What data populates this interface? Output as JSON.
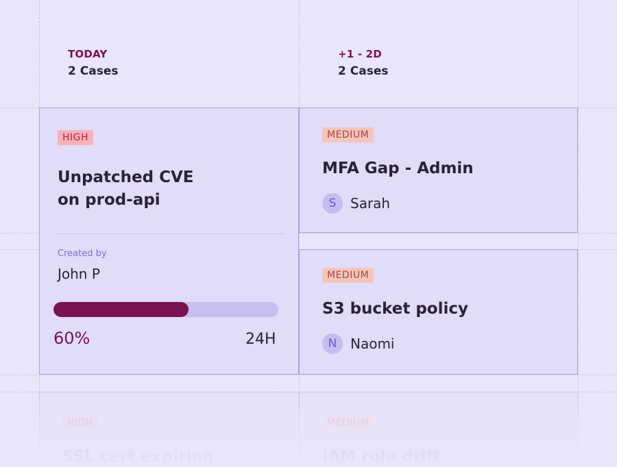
{
  "columns": [
    {
      "tag": "TODAY",
      "count": "2 Cases"
    },
    {
      "tag": "+1 - 2D",
      "count": "2 Cases"
    }
  ],
  "cards": {
    "cve": {
      "priority": "HIGH",
      "title_line1": "Unpatched CVE",
      "title_line2": "on prod-api",
      "created_label": "Created by",
      "created_by": "John P",
      "progress": 0.6,
      "progress_text": "60%",
      "sla": "24H"
    },
    "mfa": {
      "priority": "MEDIUM",
      "title": "MFA Gap - Admin",
      "assignee_initial": "S",
      "assignee": "Sarah"
    },
    "s3": {
      "priority": "MEDIUM",
      "title": "S3 bucket policy",
      "assignee_initial": "N",
      "assignee": "Naomi"
    },
    "ssl": {
      "priority": "HIGH",
      "title": "SSL cert expiring"
    },
    "iam": {
      "priority": "MEDIUM",
      "title": "IAM role drift"
    }
  },
  "colors": {
    "background": "#e9e6fb",
    "accent": "#7a1150",
    "high_badge": "#f6b3bd",
    "medium_badge": "#f5c5bd"
  }
}
